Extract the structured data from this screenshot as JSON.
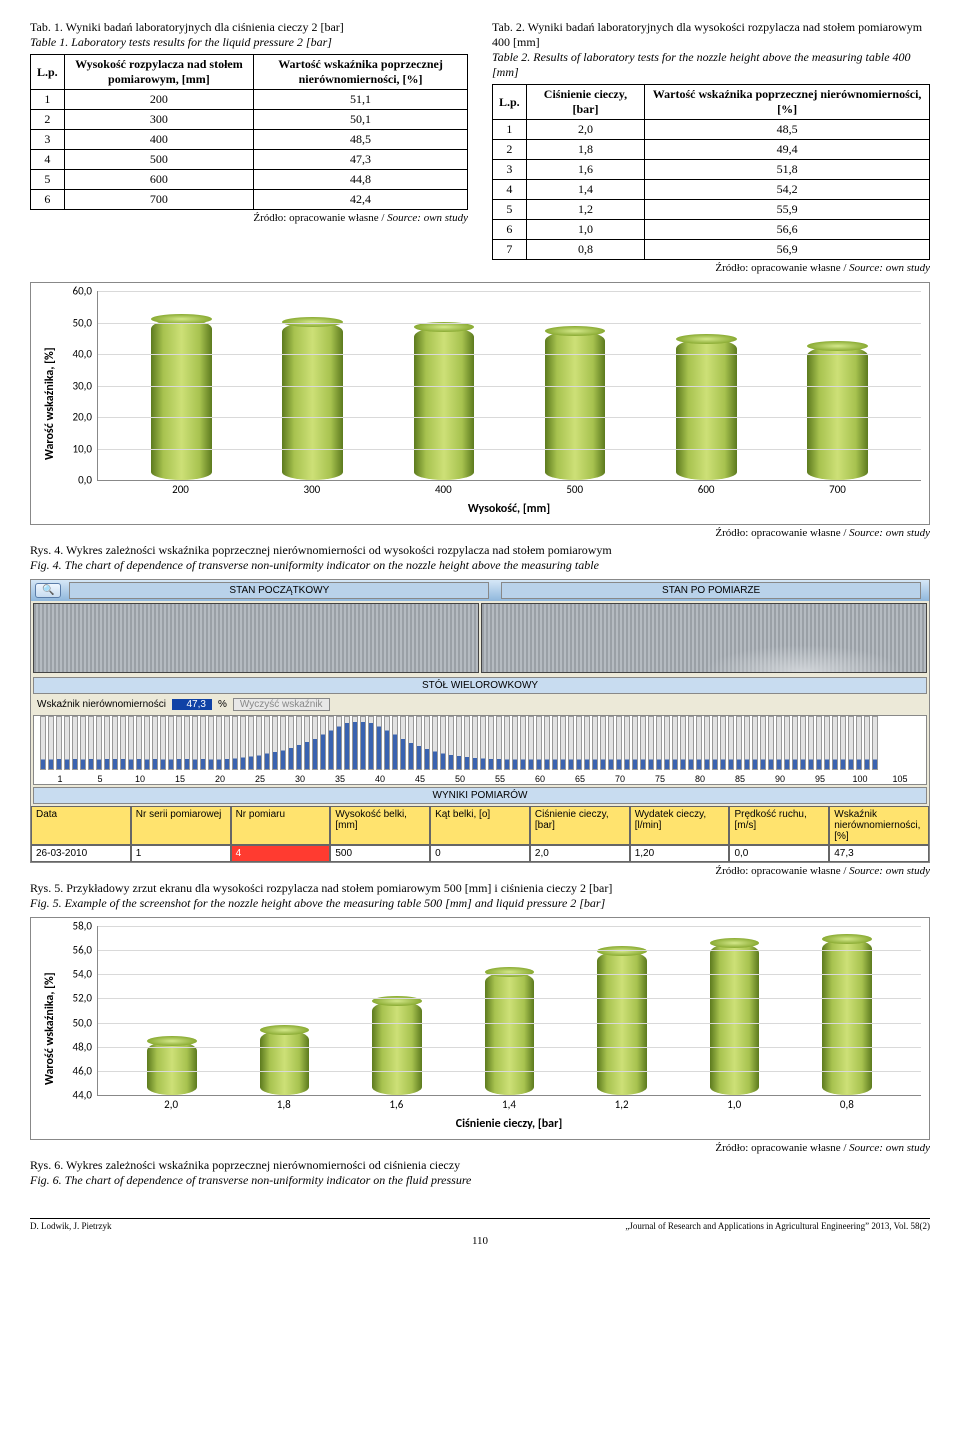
{
  "tab1": {
    "caption_pl": "Tab. 1. Wyniki badań laboratoryjnych dla ciśnienia cieczy 2 [bar]",
    "caption_en": "Table 1. Laboratory tests results for the liquid pressure 2 [bar]",
    "col_lp": "L.p.",
    "col_h": "Wysokość rozpylacza nad stołem pomiarowym, [mm]",
    "col_w": "Wartość wskaźnika poprzecznej nierównomierności, [%]",
    "rows": [
      {
        "lp": "1",
        "h": "200",
        "w": "51,1"
      },
      {
        "lp": "2",
        "h": "300",
        "w": "50,1"
      },
      {
        "lp": "3",
        "h": "400",
        "w": "48,5"
      },
      {
        "lp": "4",
        "h": "500",
        "w": "47,3"
      },
      {
        "lp": "5",
        "h": "600",
        "w": "44,8"
      },
      {
        "lp": "6",
        "h": "700",
        "w": "42,4"
      }
    ]
  },
  "tab2": {
    "caption_pl": "Tab. 2. Wyniki badań laboratoryjnych dla wysokości rozpylacza nad stołem pomiarowym 400 [mm]",
    "caption_en": "Table 2. Results of laboratory tests for the nozzle height above the measuring table 400 [mm]",
    "col_lp": "L.p.",
    "col_c": "Ciśnienie cieczy, [bar]",
    "col_w": "Wartość wskaźnika poprzecznej nierównomierności, [%]",
    "rows": [
      {
        "lp": "1",
        "c": "2,0",
        "w": "48,5"
      },
      {
        "lp": "2",
        "c": "1,8",
        "w": "49,4"
      },
      {
        "lp": "3",
        "c": "1,6",
        "w": "51,8"
      },
      {
        "lp": "4",
        "c": "1,4",
        "w": "54,2"
      },
      {
        "lp": "5",
        "c": "1,2",
        "w": "55,9"
      },
      {
        "lp": "6",
        "c": "1,0",
        "w": "56,6"
      },
      {
        "lp": "7",
        "c": "0,8",
        "w": "56,9"
      }
    ]
  },
  "src_pl": "Źródło: opracowanie własne / ",
  "src_en": "Source: own study",
  "chart1": {
    "type": "bar",
    "ylabel": "Warość wskaźnika, [%]",
    "xlabel": "Wysokość, [mm]",
    "ylim": [
      0,
      60
    ],
    "ystep": 10,
    "yticks": [
      "0,0",
      "10,0",
      "20,0",
      "30,0",
      "40,0",
      "50,0",
      "60,0"
    ],
    "categories": [
      "200",
      "300",
      "400",
      "500",
      "600",
      "700"
    ],
    "values": [
      51.1,
      50.1,
      48.5,
      47.3,
      44.8,
      42.4
    ],
    "bar_color": "#6b8e23",
    "grid_color": "#d9d9d9",
    "background": "#ffffff"
  },
  "fig4": {
    "pl": "Rys. 4. Wykres zależności wskaźnika poprzecznej nierównomierności od wysokości rozpylacza nad stołem pomiarowym",
    "en": "Fig. 4. The chart of dependence of transverse non-uniformity indicator on the nozzle height above the measuring table"
  },
  "shot": {
    "titleL": "STAN POCZĄTKOWY",
    "titleR": "STAN PO POMIARZE",
    "sub_table": "STÓŁ WIELOROWKOWY",
    "ind_label": "Wskaźnik nierównomierności",
    "ind_value": "47,3",
    "ind_unit": "%",
    "ind_btn": "Wyczyść wskaźnik",
    "results_hdr": "WYNIKI POMIARÓW",
    "scale": [
      "1",
      "5",
      "10",
      "15",
      "20",
      "25",
      "30",
      "35",
      "40",
      "45",
      "50",
      "55",
      "60",
      "65",
      "70",
      "75",
      "80",
      "85",
      "90",
      "95",
      "100",
      "105"
    ],
    "cols": [
      "Data",
      "Nr serii pomiarowej",
      "Nr pomiaru",
      "Wysokość belki, [mm]",
      "Kąt belki, [o]",
      "Ciśnienie cieczy, [bar]",
      "Wydatek cieczy, [l/min]",
      "Prędkość ruchu, [m/s]",
      "Wskaźnik nierównomierności, [%]"
    ],
    "vals": [
      "26-03-2010",
      "1",
      "4",
      "500",
      "0",
      "2,0",
      "1,20",
      "0,0",
      "47,3"
    ],
    "tubes": [
      18,
      18,
      19,
      18,
      19,
      18,
      19,
      18,
      19,
      19,
      19,
      18,
      19,
      18,
      19,
      18,
      18,
      19,
      19,
      18,
      19,
      18,
      18,
      19,
      20,
      22,
      24,
      26,
      30,
      33,
      36,
      40,
      46,
      52,
      58,
      66,
      74,
      82,
      88,
      90,
      90,
      88,
      82,
      74,
      66,
      58,
      50,
      44,
      38,
      34,
      30,
      27,
      25,
      23,
      21,
      20,
      19,
      19,
      18,
      18,
      18,
      18,
      18,
      18,
      18,
      18,
      18,
      18,
      18,
      18,
      18,
      18,
      18,
      18,
      18,
      18,
      18,
      18,
      18,
      18,
      18,
      18,
      18,
      18,
      18,
      18,
      18,
      18,
      18,
      18,
      18,
      18,
      18,
      18,
      18,
      18,
      18,
      18,
      18,
      18,
      18,
      18,
      18,
      18,
      18
    ]
  },
  "fig5": {
    "pl": "Rys. 5. Przykładowy zrzut ekranu dla wysokości rozpylacza nad stołem pomiarowym 500 [mm] i ciśnienia cieczy 2 [bar]",
    "en": "Fig. 5. Example of the screenshot for the nozzle height above the measuring table 500 [mm] and liquid pressure 2 [bar]"
  },
  "chart2": {
    "type": "bar",
    "ylabel": "Warość wskaźnika, [%]",
    "xlabel": "Ciśnienie cieczy, [bar]",
    "ylim": [
      44,
      58
    ],
    "ystep": 2,
    "yticks": [
      "44,0",
      "46,0",
      "48,0",
      "50,0",
      "52,0",
      "54,0",
      "56,0",
      "58,0"
    ],
    "categories": [
      "2,0",
      "1,8",
      "1,6",
      "1,4",
      "1,2",
      "1,0",
      "0,8"
    ],
    "values": [
      48.5,
      49.4,
      51.8,
      54.2,
      55.9,
      56.6,
      56.9
    ],
    "bar_color": "#6b8e23",
    "grid_color": "#d9d9d9",
    "background": "#ffffff"
  },
  "fig6": {
    "pl": "Rys. 6. Wykres zależności wskaźnika poprzecznej nierównomierności od ciśnienia cieczy",
    "en": "Fig. 6. The chart of dependence of transverse non-uniformity indicator on the fluid pressure"
  },
  "footer": {
    "left": "D. Lodwik, J. Pietrzyk",
    "page": "110",
    "right": "„Journal of Research and Applications in Agricultural Engineering” 2013, Vol. 58(2)"
  }
}
